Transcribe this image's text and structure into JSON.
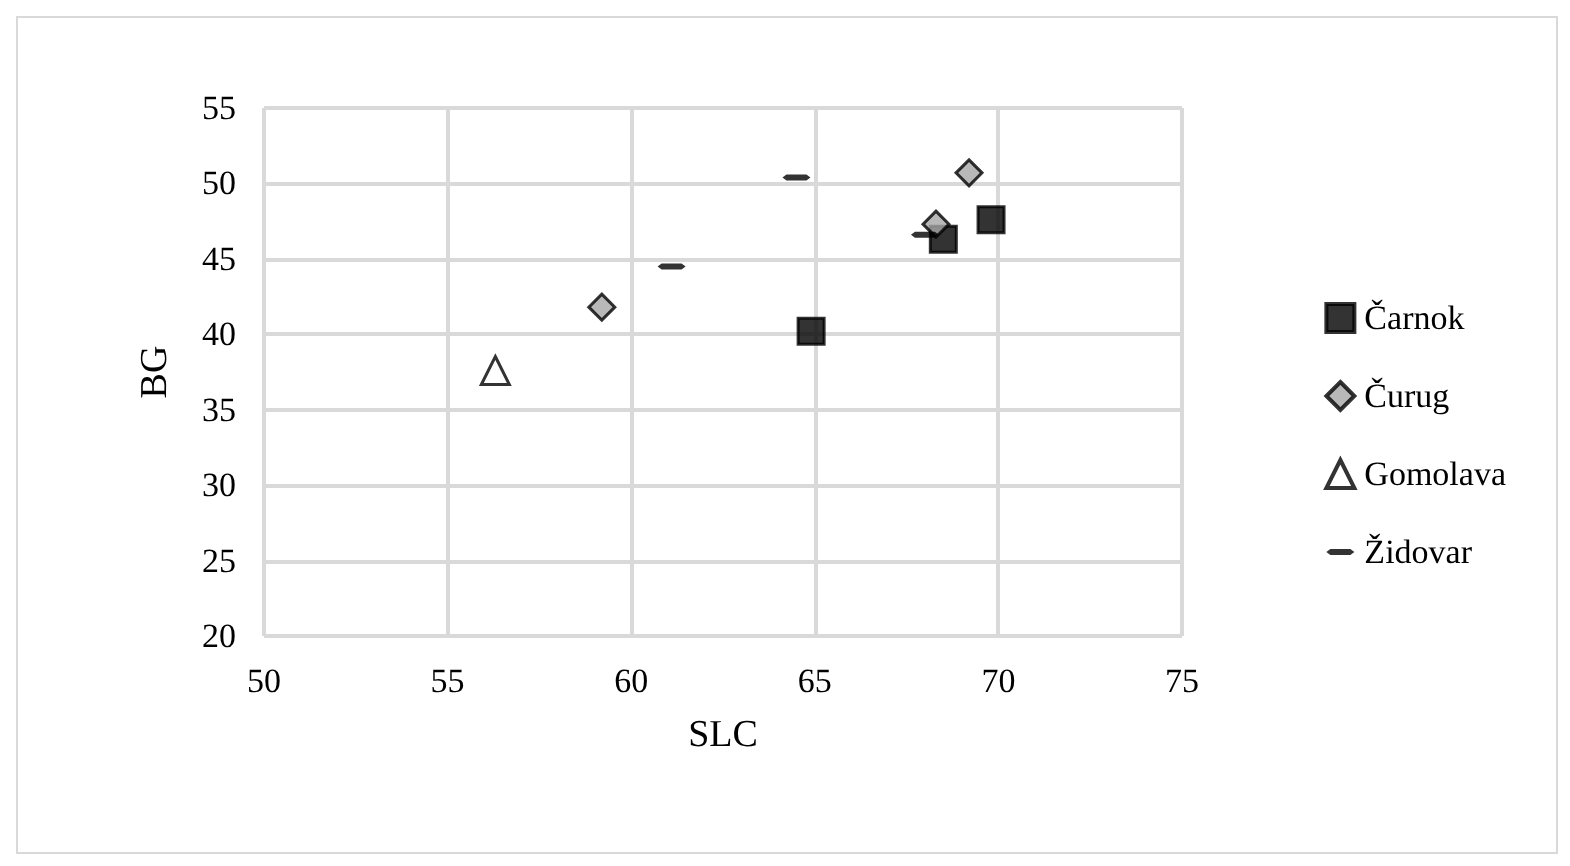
{
  "chart_data": {
    "type": "scatter",
    "xlabel": "SLC",
    "ylabel": "BG",
    "xlim": [
      50,
      75
    ],
    "xticks": [
      50,
      55,
      60,
      65,
      70,
      75
    ],
    "ylim": [
      20,
      55
    ],
    "yticks": [
      20,
      25,
      30,
      35,
      40,
      45,
      50,
      55
    ],
    "grid": true,
    "legend": "right",
    "series": [
      {
        "name": "Čarnok",
        "color": "#000000",
        "marker": "square",
        "x": [
          64.9,
          68.5,
          69.8
        ],
        "values": [
          40.2,
          46.3,
          47.6
        ]
      },
      {
        "name": "Čurug",
        "color": "#a6a6a6",
        "marker": "diamond",
        "x": [
          59.2,
          68.3,
          69.2
        ],
        "values": [
          41.8,
          47.3,
          50.7
        ]
      },
      {
        "name": "Gomolava",
        "color": "#ffffff",
        "marker": "triangle",
        "x": [
          56.3
        ],
        "values": [
          37.6
        ]
      },
      {
        "name": "Židovar",
        "color": "#000000",
        "x": [
          64.5,
          61.1,
          68.0
        ],
        "values": [
          50.4,
          44.5,
          46.6
        ]
      }
    ]
  }
}
